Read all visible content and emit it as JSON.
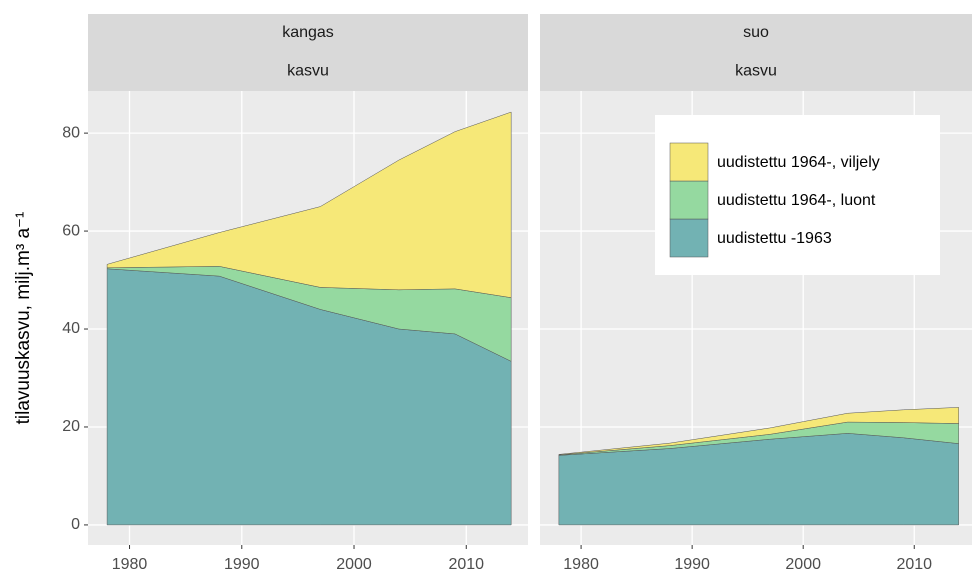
{
  "chart_data": [
    {
      "type": "area",
      "stacked": true,
      "strips": [
        "kangas",
        "kasvu"
      ],
      "ylabel": "tilavuuskasvu, milj.m³ a⁻¹",
      "x": [
        1978,
        1988,
        1997,
        2004,
        2009,
        2014
      ],
      "series": [
        {
          "name": "uudistettu -1963",
          "color": "#72b2b3",
          "values": [
            52.3,
            50.8,
            44,
            40,
            39,
            33.4
          ]
        },
        {
          "name": "uudistettu 1964-, luont",
          "color": "#95d9a0",
          "values": [
            0.2,
            2.0,
            4.5,
            8,
            9.2,
            13
          ]
        },
        {
          "name": "uudistettu 1964-, viljely",
          "color": "#f6e878",
          "values": [
            0.7,
            6.9,
            16.5,
            26.5,
            32.1,
            37.9
          ]
        }
      ],
      "xlim": [
        1976.3,
        2015.5
      ],
      "ylim": [
        -4.1,
        88.6
      ],
      "xticks": [
        1980,
        1990,
        2000,
        2010
      ],
      "yticks": [
        0,
        20,
        40,
        60,
        80
      ],
      "grid": true
    },
    {
      "type": "area",
      "stacked": true,
      "strips": [
        "suo",
        "kasvu"
      ],
      "x": [
        1978,
        1988,
        1997,
        2004,
        2009,
        2014
      ],
      "series": [
        {
          "name": "uudistettu -1963",
          "color": "#72b2b3",
          "values": [
            14.2,
            15.6,
            17.5,
            18.7,
            17.8,
            16.6
          ]
        },
        {
          "name": "uudistettu 1964-, luont",
          "color": "#95d9a0",
          "values": [
            0.1,
            0.6,
            1.0,
            2.3,
            3.1,
            4.1
          ]
        },
        {
          "name": "uudistettu 1964-, viljely",
          "color": "#f6e878",
          "values": [
            0.1,
            0.5,
            1.3,
            1.8,
            2.6,
            3.3
          ]
        }
      ],
      "xlim": [
        1976.3,
        2015.2
      ],
      "ylim": [
        -4.1,
        88.6
      ],
      "xticks": [
        1980,
        1990,
        2000,
        2010
      ],
      "grid": true,
      "legend": "top-right"
    }
  ]
}
